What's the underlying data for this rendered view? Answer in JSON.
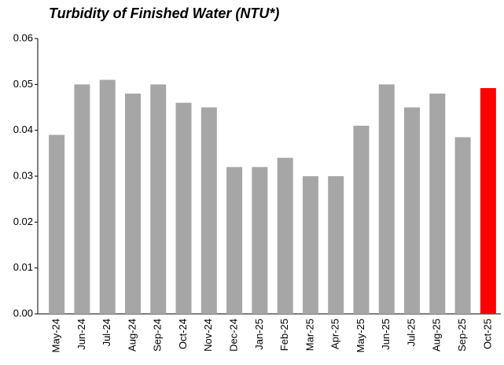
{
  "chart_data": {
    "type": "bar",
    "title": "Turbidity of Finished Water (NTU*)",
    "categories": [
      "May-24",
      "Jun-24",
      "Jul-24",
      "Aug-24",
      "Sep-24",
      "Oct-24",
      "Nov-24",
      "Dec-24",
      "Jan-25",
      "Feb-25",
      "Mar-25",
      "Apr-25",
      "May-25",
      "Jun-25",
      "Jul-25",
      "Aug-25",
      "Sep-25",
      "Oct-25"
    ],
    "values": [
      0.039,
      0.05,
      0.051,
      0.048,
      0.05,
      0.046,
      0.045,
      0.032,
      0.032,
      0.034,
      0.03,
      0.03,
      0.041,
      0.05,
      0.045,
      0.048,
      0.0385,
      0.0492
    ],
    "colors": [
      "#a6a6a6",
      "#a6a6a6",
      "#a6a6a6",
      "#a6a6a6",
      "#a6a6a6",
      "#a6a6a6",
      "#a6a6a6",
      "#a6a6a6",
      "#a6a6a6",
      "#a6a6a6",
      "#a6a6a6",
      "#a6a6a6",
      "#a6a6a6",
      "#a6a6a6",
      "#a6a6a6",
      "#a6a6a6",
      "#a6a6a6",
      "#ff0000"
    ],
    "ylim": [
      0,
      0.06
    ],
    "yticks": [
      {
        "value": 0,
        "label": "0.00"
      },
      0.01,
      0.02,
      0.03,
      0.04,
      0.05,
      0.06
    ],
    "grid": false
  }
}
